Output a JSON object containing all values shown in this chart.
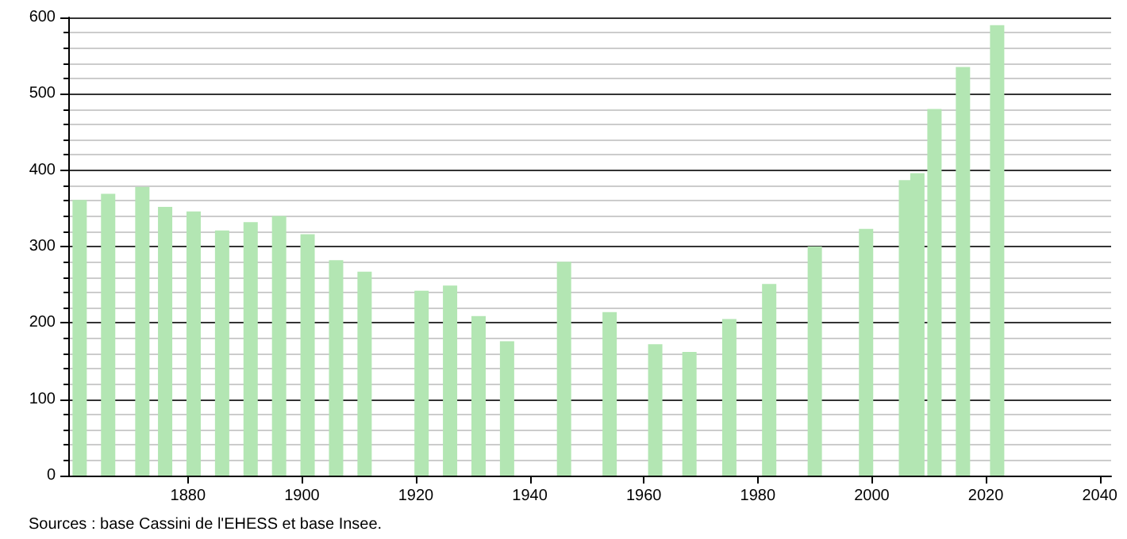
{
  "chart_data": {
    "type": "bar",
    "x": [
      1861,
      1866,
      1872,
      1876,
      1881,
      1886,
      1891,
      1896,
      1901,
      1906,
      1911,
      1921,
      1926,
      1931,
      1936,
      1946,
      1954,
      1962,
      1968,
      1975,
      1982,
      1990,
      1999,
      2006,
      2008,
      2011,
      2016,
      2022
    ],
    "values": [
      361,
      369,
      378,
      352,
      346,
      321,
      332,
      340,
      316,
      282,
      267,
      242,
      249,
      209,
      176,
      280,
      214,
      172,
      162,
      205,
      251,
      300,
      323,
      387,
      396,
      480,
      535,
      590
    ],
    "color": "#b3e6b3",
    "xlim": [
      1859,
      2042
    ],
    "xticks": [
      1880,
      1900,
      1920,
      1940,
      1960,
      1980,
      2000,
      2020,
      2040
    ],
    "ylim": [
      0,
      600
    ],
    "yticks": [
      0,
      100,
      200,
      300,
      400,
      500,
      600
    ],
    "grid": "y",
    "annotations": [
      "Sources : base Cassini de l'EHESS et base Insee."
    ]
  }
}
